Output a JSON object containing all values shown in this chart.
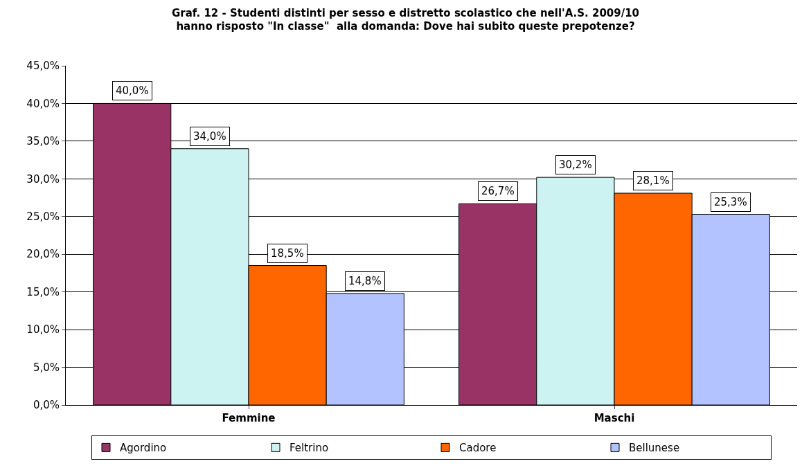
{
  "chart_data": {
    "type": "bar",
    "title": "Graf. 12 - Studenti distinti per sesso e distretto scolastico che nell'A.S. 2009/10\nhanno risposto \"In classe\"  alla domanda: Dove hai subito queste prepotenze?",
    "categories": [
      "Femmine",
      "Maschi"
    ],
    "series": [
      {
        "name": "Agordino",
        "color": "#993366",
        "values": [
          40.0,
          26.7
        ],
        "value_labels": [
          "40,0%",
          "26,7%"
        ]
      },
      {
        "name": "Feltrino",
        "color": "#ccf2f2",
        "values": [
          34.0,
          30.2
        ],
        "value_labels": [
          "34,0%",
          "30,2%"
        ]
      },
      {
        "name": "Cadore",
        "color": "#ff6600",
        "values": [
          18.5,
          28.1
        ],
        "value_labels": [
          "18,5%",
          "28,1%"
        ]
      },
      {
        "name": "Bellunese",
        "color": "#b3c3ff",
        "values": [
          14.8,
          25.3
        ],
        "value_labels": [
          "14,8%",
          "25,3%"
        ]
      }
    ],
    "ylim": [
      0,
      45
    ],
    "yticks": [
      {
        "value": 0,
        "label": "0,0%"
      },
      {
        "value": 5,
        "label": "5,0%"
      },
      {
        "value": 10,
        "label": "10,0%"
      },
      {
        "value": 15,
        "label": "15,0%"
      },
      {
        "value": 20,
        "label": "20,0%"
      },
      {
        "value": 25,
        "label": "25,0%"
      },
      {
        "value": 30,
        "label": "30,0%"
      },
      {
        "value": 35,
        "label": "35,0%"
      },
      {
        "value": 40,
        "label": "40,0%"
      },
      {
        "value": 45,
        "label": "45,0%"
      }
    ],
    "grid": "y",
    "legend": "bottom"
  }
}
